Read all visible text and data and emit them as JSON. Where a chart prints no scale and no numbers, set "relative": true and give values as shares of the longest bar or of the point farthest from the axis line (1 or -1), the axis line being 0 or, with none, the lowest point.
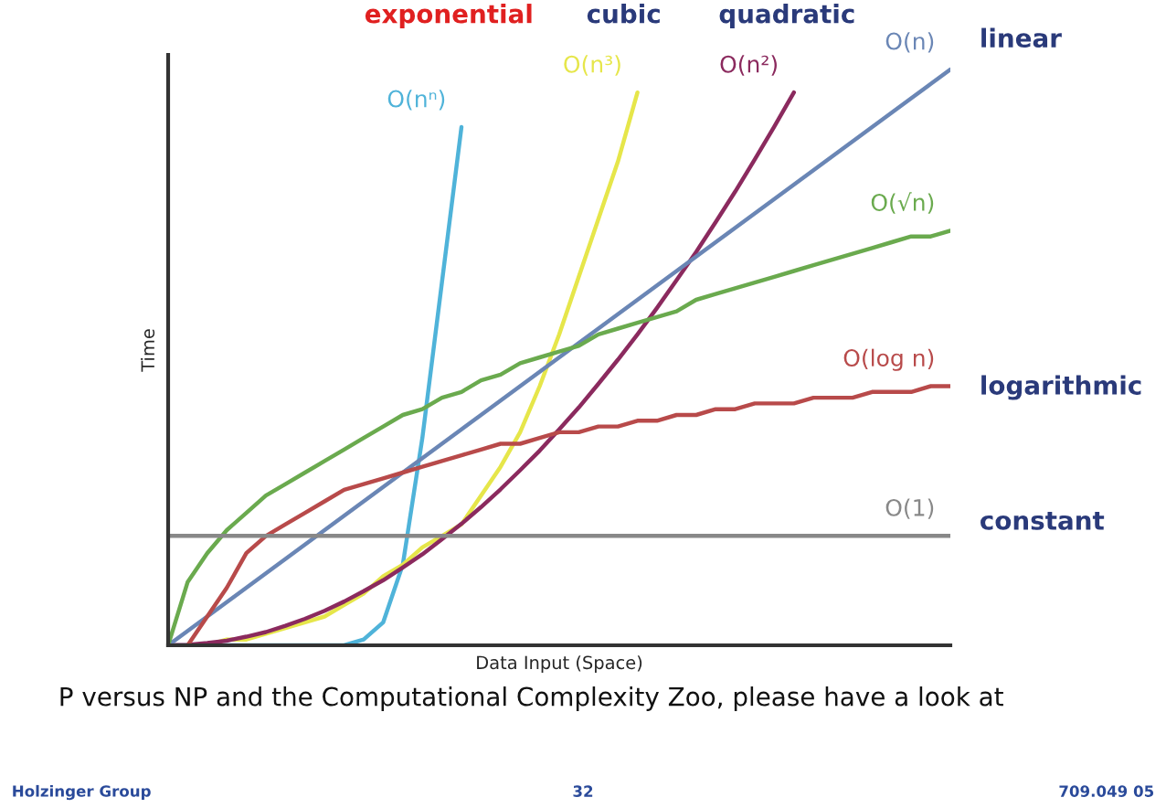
{
  "chart_data": {
    "type": "line",
    "relative": true,
    "xlabel": "Data Input (Space)",
    "ylabel": "Time",
    "categories": [
      null,
      null,
      null,
      null,
      null,
      null,
      null,
      null,
      null,
      null,
      null,
      null,
      null,
      null,
      null,
      null,
      null,
      null,
      null,
      null,
      null,
      null,
      null,
      null,
      null,
      null,
      null,
      null,
      null,
      null,
      null,
      null,
      null,
      null,
      null,
      null,
      null,
      null,
      null,
      null,
      null
    ],
    "series": [
      {
        "name": "O(nⁿ)",
        "color": "#4fb3d9",
        "values": [
          0,
          0,
          0,
          0,
          0,
          0,
          0,
          0,
          0,
          0,
          0.01,
          0.04,
          0.14,
          0.36,
          0.63,
          0.9,
          null,
          null,
          null,
          null,
          null,
          null,
          null,
          null,
          null,
          null,
          null,
          null,
          null,
          null,
          null,
          null,
          null,
          null,
          null,
          null,
          null,
          null,
          null,
          null,
          null
        ]
      },
      {
        "name": "O(n³)",
        "color": "#e6e64a",
        "values": [
          null,
          null,
          0,
          0.01,
          0.01,
          0.02,
          0.03,
          0.04,
          0.05,
          0.07,
          0.09,
          0.12,
          0.14,
          0.17,
          0.19,
          0.21,
          0.26,
          0.31,
          0.37,
          0.45,
          0.54,
          0.64,
          0.74,
          0.84,
          0.96,
          null,
          null,
          null,
          null,
          null,
          null,
          null,
          null,
          null,
          null,
          null,
          null,
          null,
          null,
          null,
          null
        ]
      },
      {
        "name": "O(n²)",
        "color": "#8b2a5e",
        "values": [
          0,
          0.001,
          0.004,
          0.008,
          0.015,
          0.023,
          0.034,
          0.046,
          0.06,
          0.076,
          0.094,
          0.113,
          0.135,
          0.158,
          0.184,
          0.211,
          0.24,
          0.271,
          0.304,
          0.338,
          0.375,
          0.413,
          0.454,
          0.496,
          0.54,
          0.586,
          0.634,
          0.683,
          0.735,
          0.788,
          0.844,
          0.901,
          0.96,
          null,
          null,
          null,
          null,
          null,
          null,
          null,
          null
        ]
      },
      {
        "name": "O(n)",
        "color": "#6a86b5",
        "values": [
          0,
          0.025,
          0.05,
          0.075,
          0.1,
          0.125,
          0.15,
          0.175,
          0.2,
          0.225,
          0.25,
          0.275,
          0.3,
          0.325,
          0.35,
          0.375,
          0.4,
          0.425,
          0.45,
          0.475,
          0.5,
          0.525,
          0.55,
          0.575,
          0.6,
          0.625,
          0.65,
          0.675,
          0.7,
          0.725,
          0.75,
          0.775,
          0.8,
          0.825,
          0.85,
          0.875,
          0.9,
          0.925,
          0.95,
          0.975,
          1
        ]
      },
      {
        "name": "O(√n)",
        "color": "#6aaa4e",
        "values": [
          0,
          0.11,
          0.16,
          0.2,
          0.23,
          0.26,
          0.28,
          0.3,
          0.32,
          0.34,
          0.36,
          0.38,
          0.4,
          0.41,
          0.43,
          0.44,
          0.46,
          0.47,
          0.49,
          0.5,
          0.51,
          0.52,
          0.54,
          0.55,
          0.56,
          0.57,
          0.58,
          0.6,
          0.61,
          0.62,
          0.63,
          0.64,
          0.65,
          0.66,
          0.67,
          0.68,
          0.69,
          0.7,
          0.71,
          0.71,
          0.72
        ]
      },
      {
        "name": "O(log n)",
        "color": "#b84a4a",
        "values": [
          null,
          0,
          0.05,
          0.1,
          0.16,
          0.19,
          0.21,
          0.23,
          0.25,
          0.27,
          0.28,
          0.29,
          0.3,
          0.31,
          0.32,
          0.33,
          0.34,
          0.35,
          0.35,
          0.36,
          0.37,
          0.37,
          0.38,
          0.38,
          0.39,
          0.39,
          0.4,
          0.4,
          0.41,
          0.41,
          0.42,
          0.42,
          0.42,
          0.43,
          0.43,
          0.43,
          0.44,
          0.44,
          0.44,
          0.45,
          0.45
        ]
      },
      {
        "name": "O(1)",
        "color": "#888888",
        "values": [
          0.19,
          0.19,
          0.19,
          0.19,
          0.19,
          0.19,
          0.19,
          0.19,
          0.19,
          0.19,
          0.19,
          0.19,
          0.19,
          0.19,
          0.19,
          0.19,
          0.19,
          0.19,
          0.19,
          0.19,
          0.19,
          0.19,
          0.19,
          0.19,
          0.19,
          0.19,
          0.19,
          0.19,
          0.19,
          0.19,
          0.19,
          0.19,
          0.19,
          0.19,
          0.19,
          0.19,
          0.19,
          0.19,
          0.19,
          0.19,
          0.19
        ]
      }
    ],
    "annotations": [
      "exponential",
      "cubic",
      "quadratic",
      "linear",
      "logarithmic",
      "constant",
      "P versus NP and the Computational Complexity Zoo, please have a look at",
      "Holzinger Group",
      "32",
      "709.049 05"
    ]
  }
}
